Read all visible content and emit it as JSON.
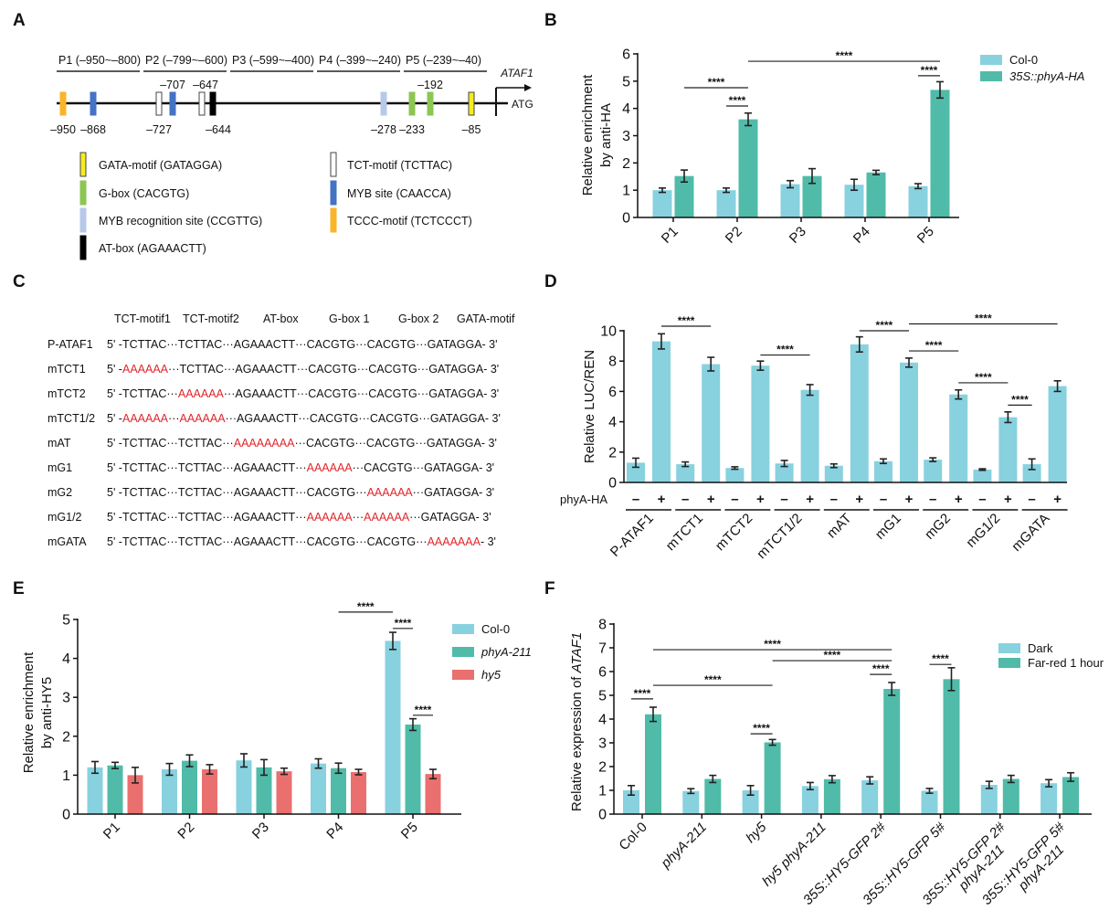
{
  "panel_labels": [
    "A",
    "B",
    "C",
    "D",
    "E",
    "F"
  ],
  "promoter_diagram": {
    "gene": "ATAF1",
    "start_codon": "ATG",
    "fragments": [
      "P1 (–950~–800)",
      "P2 (–799~–600)",
      "P3 (–599~–400)",
      "P4 (–399~–240)",
      "P5 (–239~–40)"
    ],
    "motifs": [
      {
        "type": "TCCC",
        "label": "–950",
        "side": "below"
      },
      {
        "type": "MYB",
        "label": "–868",
        "side": "below"
      },
      {
        "type": "TCT",
        "label": "–727",
        "side": "below"
      },
      {
        "type": "MYB",
        "label": "–707",
        "side": "above"
      },
      {
        "type": "TCT",
        "label": "–647",
        "side": "above"
      },
      {
        "type": "AT",
        "label": "–644",
        "side": "below"
      },
      {
        "type": "MYBR",
        "label": "–278",
        "side": "below"
      },
      {
        "type": "GBOX",
        "label": "–233",
        "side": "below"
      },
      {
        "type": "GBOX",
        "label": "–192",
        "side": "above"
      },
      {
        "type": "GATA",
        "label": "–85",
        "side": "below"
      }
    ],
    "legend": [
      {
        "type": "GATA",
        "label": "GATA-motif (GATAGGA)",
        "color": "#f7ec1e"
      },
      {
        "type": "GBOX",
        "label": "G-box (CACGTG)",
        "color": "#8cc653"
      },
      {
        "type": "MYBR",
        "label": "MYB recognition site (CCGTTG)",
        "color": "#b7c8e8"
      },
      {
        "type": "AT",
        "label": "AT-box (AGAAACTT)",
        "color": "#000000"
      },
      {
        "type": "TCT",
        "label": "TCT-motif (TCTTAC)",
        "color": "#ffffff"
      },
      {
        "type": "MYB",
        "label": "MYB site (CAACCA)",
        "color": "#4472c4"
      },
      {
        "type": "TCCC",
        "label": "TCCC-motif (TCTCCCT)",
        "color": "#f9b52a"
      }
    ]
  },
  "sequence_panel": {
    "columns": [
      "TCT-motif1",
      "TCT-motif2",
      "AT-box",
      "G-box 1",
      "G-box 2",
      "GATA-motif"
    ],
    "prefix": "5' -",
    "separator": "···",
    "suffix": "- 3'",
    "mutation_color": "#e0262b",
    "rows": [
      {
        "name": "P-ATAF1",
        "segments": [
          "TCTTAC",
          "TCTTAC",
          "AGAAACTT",
          "CACGTG",
          "CACGTG",
          "GATAGGA"
        ],
        "mutated": []
      },
      {
        "name": "mTCT1",
        "segments": [
          "AAAAAA",
          "TCTTAC",
          "AGAAACTT",
          "CACGTG",
          "CACGTG",
          "GATAGGA"
        ],
        "mutated": [
          0
        ]
      },
      {
        "name": "mTCT2",
        "segments": [
          "TCTTAC",
          "AAAAAA",
          "AGAAACTT",
          "CACGTG",
          "CACGTG",
          "GATAGGA"
        ],
        "mutated": [
          1
        ]
      },
      {
        "name": "mTCT1/2",
        "segments": [
          "AAAAAA",
          "AAAAAA",
          "AGAAACTT",
          "CACGTG",
          "CACGTG",
          "GATAGGA"
        ],
        "mutated": [
          0,
          1
        ]
      },
      {
        "name": "mAT",
        "segments": [
          "TCTTAC",
          "TCTTAC",
          "AAAAAAAA",
          "CACGTG",
          "CACGTG",
          "GATAGGA"
        ],
        "mutated": [
          2
        ]
      },
      {
        "name": "mG1",
        "segments": [
          "TCTTAC",
          "TCTTAC",
          "AGAAACTT",
          "AAAAAA",
          "CACGTG",
          "GATAGGA"
        ],
        "mutated": [
          3
        ]
      },
      {
        "name": "mG2",
        "segments": [
          "TCTTAC",
          "TCTTAC",
          "AGAAACTT",
          "CACGTG",
          "AAAAAA",
          "GATAGGA"
        ],
        "mutated": [
          4
        ]
      },
      {
        "name": "mG1/2",
        "segments": [
          "TCTTAC",
          "TCTTAC",
          "AGAAACTT",
          "AAAAAA",
          "AAAAAA",
          "GATAGGA"
        ],
        "mutated": [
          3,
          4
        ]
      },
      {
        "name": "mGATA",
        "segments": [
          "TCTTAC",
          "TCTTAC",
          "AGAAACTT",
          "CACGTG",
          "CACGTG",
          "AAAAAAA"
        ],
        "mutated": [
          5
        ]
      }
    ]
  },
  "chart_data": [
    {
      "panel": "B",
      "type": "bar",
      "categories": [
        "P1",
        "P2",
        "P3",
        "P4",
        "P5"
      ],
      "ylabel": [
        "Relative enrichment",
        "by anti-HA"
      ],
      "ylim": [
        0,
        6
      ],
      "yticks": [
        0,
        1,
        2,
        3,
        4,
        5,
        6
      ],
      "legend": "top-right",
      "series": [
        {
          "name": "Col-0",
          "italic": false,
          "color": "#88d1df",
          "values": [
            1.0,
            1.0,
            1.22,
            1.2,
            1.15
          ],
          "errors": [
            0.08,
            0.08,
            0.13,
            0.2,
            0.09
          ]
        },
        {
          "name": "35S::phyA-HA",
          "italic": true,
          "color": "#50bba8",
          "values": [
            1.52,
            3.6,
            1.52,
            1.65,
            4.68
          ],
          "errors": [
            0.22,
            0.23,
            0.27,
            0.08,
            0.3
          ]
        }
      ],
      "significance": [
        {
          "from": [
            0,
            1
          ],
          "to": [
            1,
            1
          ],
          "y": 4.76,
          "label": "****"
        },
        {
          "from": [
            1,
            0
          ],
          "to": [
            1,
            1
          ],
          "y": 4.09,
          "label": "****"
        },
        {
          "from": [
            1,
            1
          ],
          "to": [
            4,
            1
          ],
          "y": 5.73,
          "label": "****"
        },
        {
          "from": [
            4,
            0
          ],
          "to": [
            4,
            1
          ],
          "y": 5.2,
          "label": "****"
        }
      ]
    },
    {
      "panel": "D",
      "type": "bar",
      "categories": [
        "P-ATAF1",
        "mTCT1",
        "mTCT2",
        "mTCT1/2",
        "mAT",
        "mG1",
        "mG2",
        "mG1/2",
        "mGATA"
      ],
      "ylabel": [
        "Relative LUC/REN"
      ],
      "row_label": "phyA-HA",
      "ylim": [
        0,
        10
      ],
      "yticks": [
        0,
        2,
        4,
        6,
        8,
        10
      ],
      "series": [
        {
          "name": "–",
          "color": "#88d1df",
          "values": [
            1.3,
            1.2,
            0.95,
            1.25,
            1.1,
            1.4,
            1.5,
            0.85,
            1.2
          ],
          "errors": [
            0.3,
            0.15,
            0.08,
            0.2,
            0.12,
            0.15,
            0.12,
            0.05,
            0.35
          ]
        },
        {
          "name": "+",
          "color": "#88d1df",
          "values": [
            9.3,
            7.8,
            7.7,
            6.1,
            9.1,
            7.9,
            5.8,
            4.3,
            6.35
          ],
          "errors": [
            0.5,
            0.45,
            0.3,
            0.35,
            0.5,
            0.3,
            0.3,
            0.35,
            0.35
          ]
        }
      ],
      "significance": [
        {
          "from": [
            0,
            1
          ],
          "to": [
            1,
            1
          ],
          "y": 10.3,
          "label": "****"
        },
        {
          "from": [
            2,
            1
          ],
          "to": [
            3,
            1
          ],
          "y": 8.4,
          "label": "****"
        },
        {
          "from": [
            4,
            1
          ],
          "to": [
            5,
            1
          ],
          "y": 10.0,
          "label": "****"
        },
        {
          "from": [
            5,
            1
          ],
          "to": [
            8,
            1
          ],
          "y": 10.45,
          "label": "****"
        },
        {
          "from": [
            5,
            1
          ],
          "to": [
            6,
            1
          ],
          "y": 8.67,
          "label": "****"
        },
        {
          "from": [
            6,
            1
          ],
          "to": [
            7,
            1
          ],
          "y": 6.57,
          "label": "****"
        },
        {
          "from": [
            7,
            1
          ],
          "to": [
            8,
            0
          ],
          "y": 5.1,
          "label": "****"
        }
      ]
    },
    {
      "panel": "E",
      "type": "bar",
      "categories": [
        "P1",
        "P2",
        "P3",
        "P4",
        "P5"
      ],
      "ylabel": [
        "Relative enrichment",
        "by anti-HY5"
      ],
      "ylim": [
        0,
        5
      ],
      "yticks": [
        0,
        1,
        2,
        3,
        4,
        5
      ],
      "legend": "top-right",
      "series": [
        {
          "name": "Col-0",
          "italic": false,
          "color": "#88d1df",
          "values": [
            1.2,
            1.15,
            1.38,
            1.3,
            4.45
          ],
          "errors": [
            0.15,
            0.15,
            0.17,
            0.12,
            0.22
          ]
        },
        {
          "name": "phyA-211",
          "italic": true,
          "color": "#50bba8",
          "values": [
            1.25,
            1.37,
            1.2,
            1.18,
            2.3
          ],
          "errors": [
            0.08,
            0.15,
            0.2,
            0.13,
            0.15
          ]
        },
        {
          "name": "hy5",
          "italic": true,
          "color": "#e9706e",
          "values": [
            1.0,
            1.15,
            1.1,
            1.08,
            1.03
          ],
          "errors": [
            0.2,
            0.12,
            0.08,
            0.07,
            0.12
          ]
        }
      ],
      "significance": [
        {
          "from": [
            3,
            1
          ],
          "to": [
            4,
            0
          ],
          "y": 5.19,
          "label": "****"
        },
        {
          "from": [
            4,
            0
          ],
          "to": [
            4,
            1
          ],
          "y": 4.77,
          "label": "****"
        },
        {
          "from": [
            4,
            1
          ],
          "to": [
            4,
            2
          ],
          "y": 2.54,
          "label": "****"
        }
      ]
    },
    {
      "panel": "F",
      "type": "bar",
      "categories": [
        [
          "Col-0"
        ],
        [
          "phyA-211"
        ],
        [
          "hy5"
        ],
        [
          "hy5 phyA-211"
        ],
        [
          "35S::HY5-GFP 2#"
        ],
        [
          "35S::HY5-GFP 5#"
        ],
        [
          "35S::HY5-GFP 2#",
          "phyA-211"
        ],
        [
          "35S::HY5-GFP 5#",
          "phyA-211"
        ]
      ],
      "italic_categories": [
        false,
        true,
        true,
        true,
        true,
        true,
        true,
        true
      ],
      "ylabel_parts": [
        "Relative expression of ",
        "ATAF1"
      ],
      "ylim": [
        0,
        8
      ],
      "yticks": [
        0,
        1,
        2,
        3,
        4,
        5,
        6,
        7,
        8
      ],
      "legend": "top-right",
      "series": [
        {
          "name": "Dark",
          "italic": false,
          "color": "#88d1df",
          "values": [
            1.0,
            0.97,
            1.0,
            1.18,
            1.42,
            0.98,
            1.23,
            1.3
          ],
          "errors": [
            0.2,
            0.1,
            0.2,
            0.15,
            0.15,
            0.1,
            0.15,
            0.15
          ]
        },
        {
          "name": "Far-red 1 hour",
          "italic": false,
          "color": "#50bba8",
          "values": [
            4.2,
            1.48,
            3.02,
            1.47,
            5.27,
            5.68,
            1.48,
            1.56
          ],
          "errors": [
            0.3,
            0.15,
            0.12,
            0.15,
            0.27,
            0.48,
            0.15,
            0.18
          ]
        }
      ],
      "significance": [
        {
          "from": [
            0,
            0
          ],
          "to": [
            0,
            1
          ],
          "y": 4.85,
          "label": "****"
        },
        {
          "from": [
            0,
            1
          ],
          "to": [
            2,
            1
          ],
          "y": 5.42,
          "label": "****"
        },
        {
          "from": [
            0,
            1
          ],
          "to": [
            4,
            1
          ],
          "y": 6.92,
          "label": "****"
        },
        {
          "from": [
            2,
            1
          ],
          "to": [
            4,
            1
          ],
          "y": 6.46,
          "label": "****"
        },
        {
          "from": [
            4,
            0
          ],
          "to": [
            4,
            1
          ],
          "y": 5.88,
          "label": "****"
        },
        {
          "from": [
            5,
            0
          ],
          "to": [
            5,
            1
          ],
          "y": 6.3,
          "label": "****"
        },
        {
          "from": [
            2,
            0
          ],
          "to": [
            2,
            1
          ],
          "y": 3.38,
          "label": "****"
        }
      ]
    }
  ]
}
